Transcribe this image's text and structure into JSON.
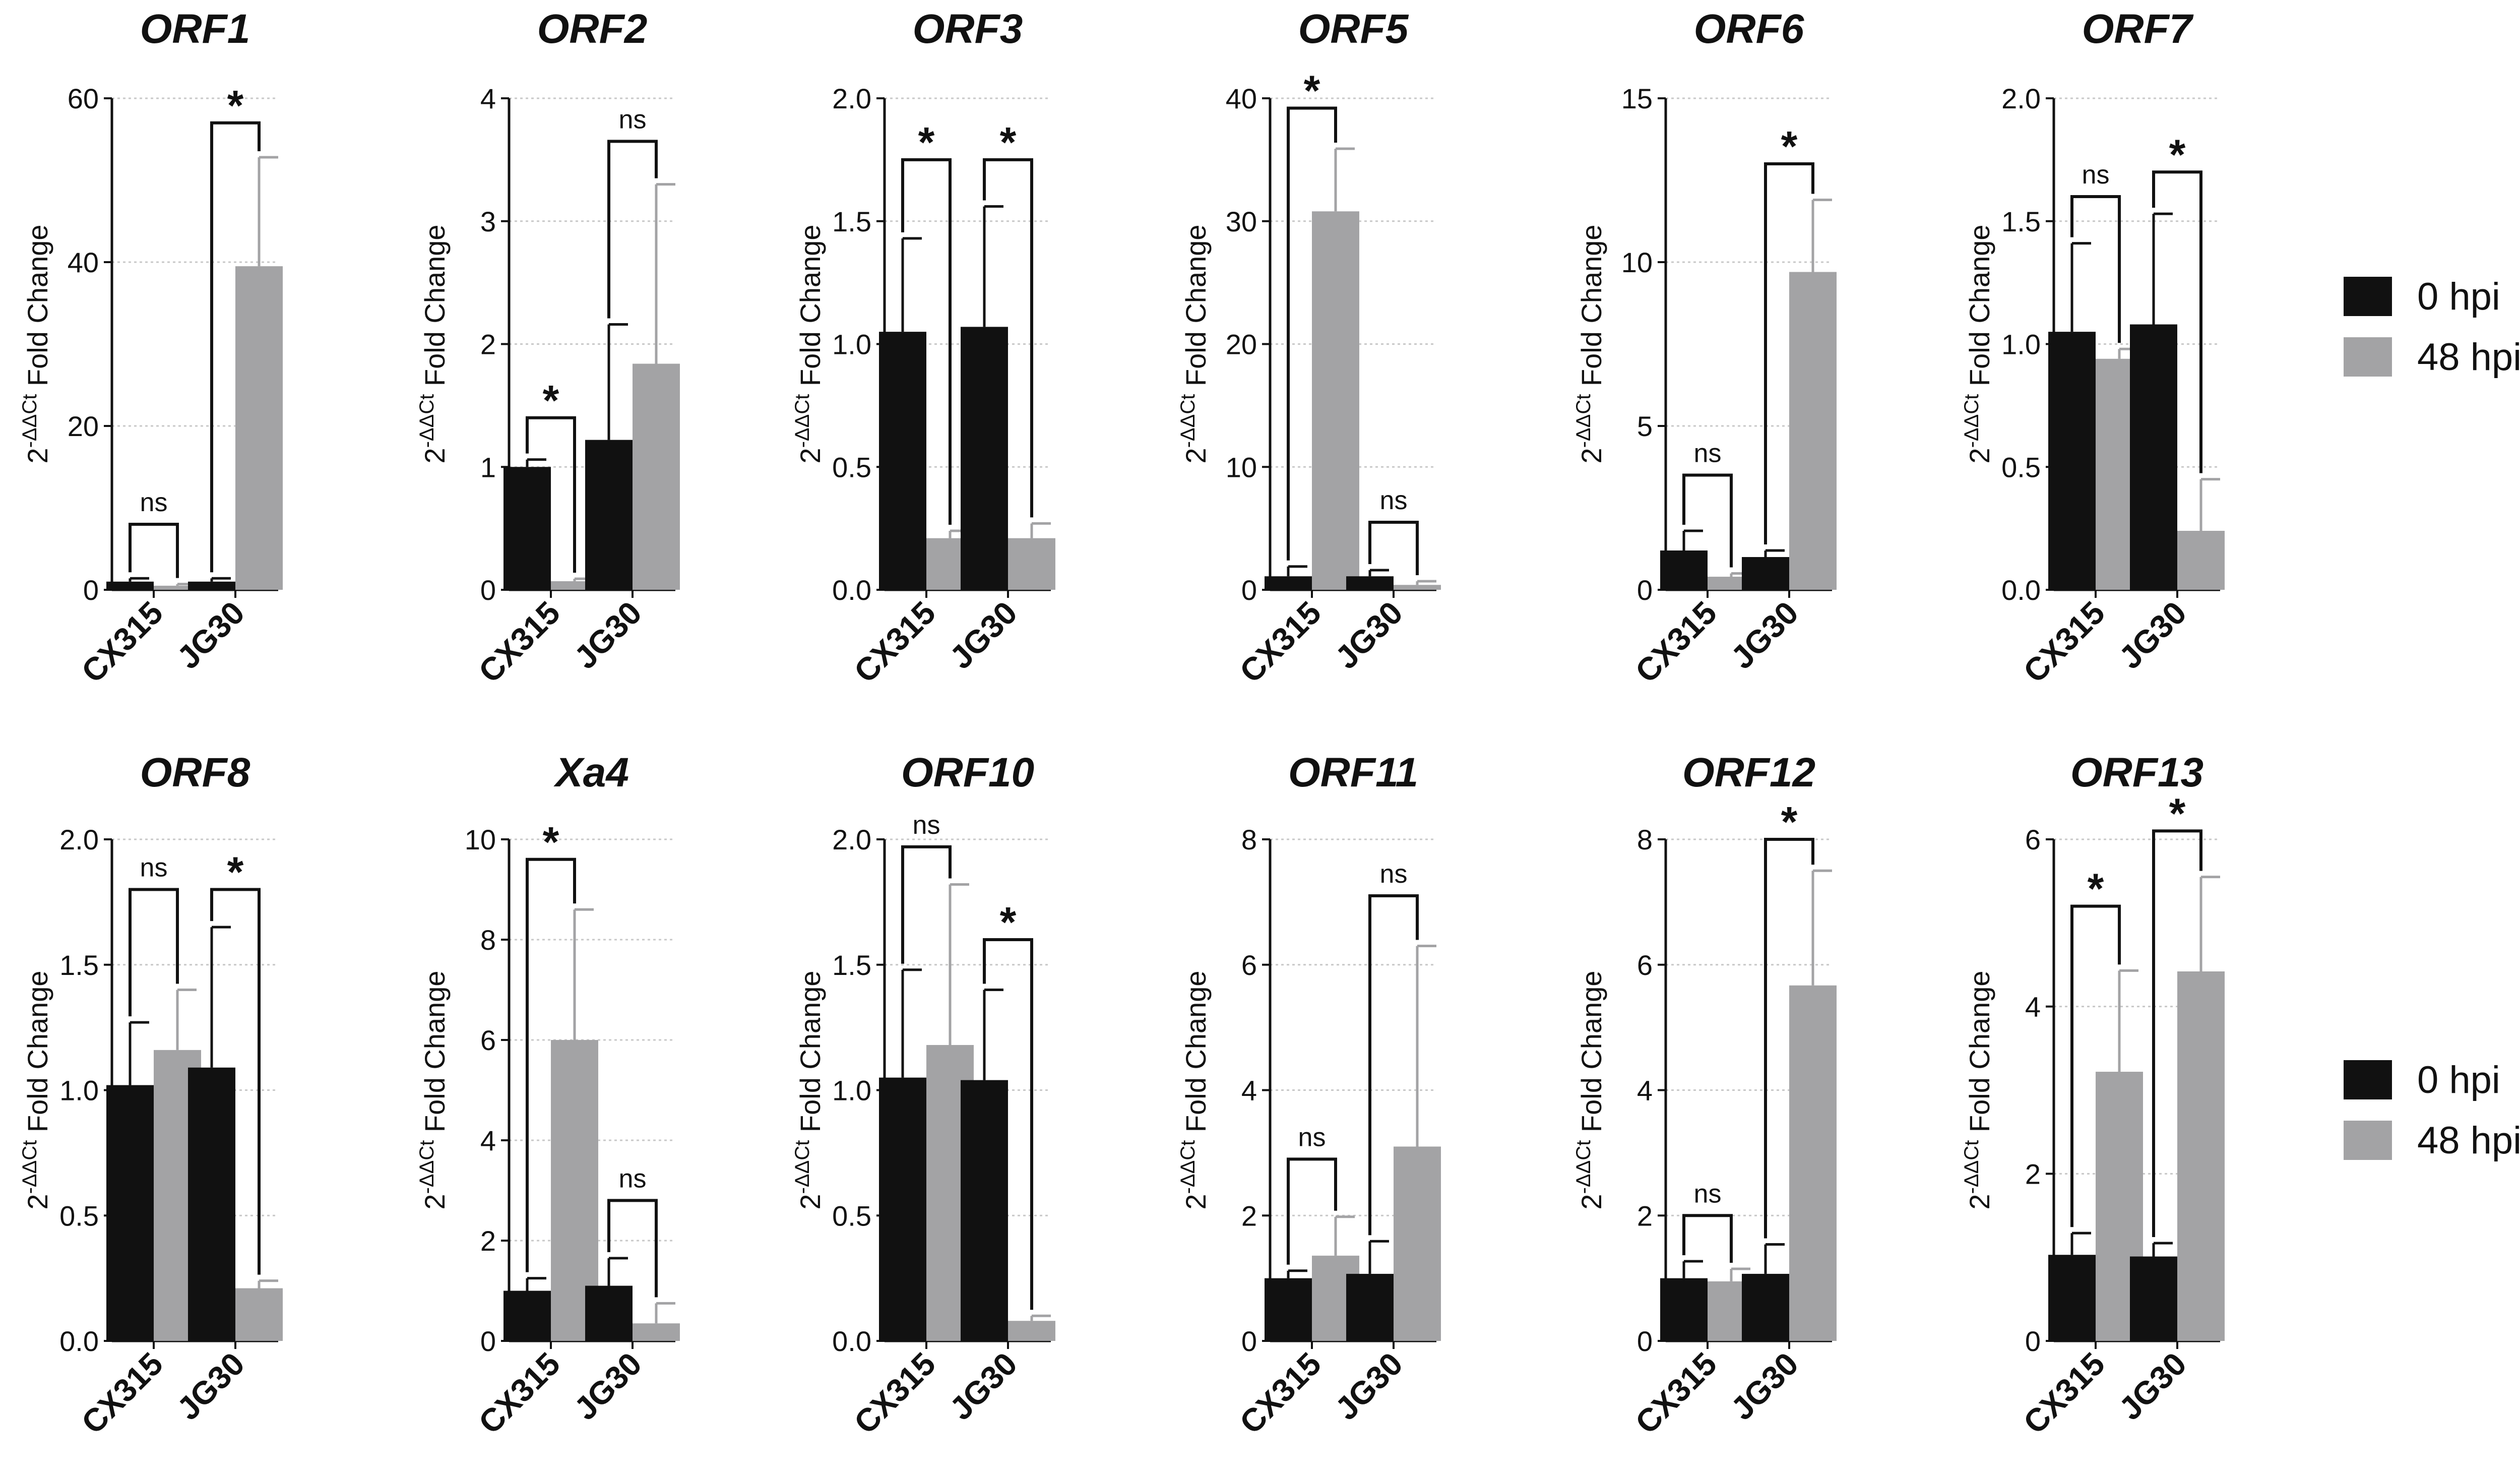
{
  "legend": {
    "items": [
      {
        "label": "0 hpi",
        "color": "#111111"
      },
      {
        "label": "48 hpi",
        "color": "#a3a3a5"
      }
    ]
  },
  "ylabel_base": "2",
  "ylabel_sup": "-ΔΔCt",
  "ylabel_rest": " Fold Change",
  "colors": {
    "hpi0": "#111111",
    "hpi48": "#a3a3a5",
    "grid": "#c8c8c8"
  },
  "chart_data": [
    {
      "type": "bar",
      "title": "ORF1",
      "categories": [
        "CX315",
        "JG30"
      ],
      "ylim": [
        0,
        60
      ],
      "ticks": [
        "0",
        "20",
        "40",
        "60"
      ],
      "series": [
        {
          "name": "0 hpi",
          "values": [
            1.0,
            1.0
          ],
          "errors": [
            0.4,
            0.4
          ]
        },
        {
          "name": "48 hpi",
          "values": [
            0.5,
            39.5
          ],
          "errors": [
            0.2,
            13.3
          ]
        }
      ],
      "significance": [
        "ns",
        "*"
      ],
      "bracket_y": [
        8,
        57
      ]
    },
    {
      "type": "bar",
      "title": "ORF2",
      "categories": [
        "CX315",
        "JG30"
      ],
      "ylim": [
        0,
        4
      ],
      "ticks": [
        "0",
        "1",
        "2",
        "3",
        "4"
      ],
      "series": [
        {
          "name": "0 hpi",
          "values": [
            1.0,
            1.22
          ],
          "errors": [
            0.06,
            0.94
          ]
        },
        {
          "name": "48 hpi",
          "values": [
            0.07,
            1.84
          ],
          "errors": [
            0.02,
            1.46
          ]
        }
      ],
      "significance": [
        "*",
        "ns"
      ],
      "bracket_y": [
        1.4,
        3.65
      ]
    },
    {
      "type": "bar",
      "title": "ORF3",
      "categories": [
        "CX315",
        "JG30"
      ],
      "ylim": [
        0,
        2.0
      ],
      "ticks": [
        "0.0",
        "0.5",
        "1.0",
        "1.5",
        "2.0"
      ],
      "series": [
        {
          "name": "0 hpi",
          "values": [
            1.05,
            1.07
          ],
          "errors": [
            0.38,
            0.49
          ]
        },
        {
          "name": "48 hpi",
          "values": [
            0.21,
            0.21
          ],
          "errors": [
            0.03,
            0.06
          ]
        }
      ],
      "significance": [
        "*",
        "*"
      ],
      "bracket_y": [
        1.75,
        1.75
      ]
    },
    {
      "type": "bar",
      "title": "ORF5",
      "categories": [
        "CX315",
        "JG30"
      ],
      "ylim": [
        0,
        40
      ],
      "ticks": [
        "0",
        "10",
        "20",
        "30",
        "40"
      ],
      "series": [
        {
          "name": "0 hpi",
          "values": [
            1.1,
            1.1
          ],
          "errors": [
            0.8,
            0.5
          ]
        },
        {
          "name": "48 hpi",
          "values": [
            30.8,
            0.4
          ],
          "errors": [
            5.1,
            0.3
          ]
        }
      ],
      "significance": [
        "*",
        "ns"
      ],
      "bracket_y": [
        39.2,
        5.5
      ]
    },
    {
      "type": "bar",
      "title": "ORF6",
      "categories": [
        "CX315",
        "JG30"
      ],
      "ylim": [
        0,
        15
      ],
      "ticks": [
        "0",
        "5",
        "10",
        "15"
      ],
      "series": [
        {
          "name": "0 hpi",
          "values": [
            1.2,
            1.0
          ],
          "errors": [
            0.6,
            0.2
          ]
        },
        {
          "name": "48 hpi",
          "values": [
            0.4,
            9.7
          ],
          "errors": [
            0.1,
            2.2
          ]
        }
      ],
      "significance": [
        "ns",
        "*"
      ],
      "bracket_y": [
        3.5,
        13.0
      ]
    },
    {
      "type": "bar",
      "title": "ORF7",
      "categories": [
        "CX315",
        "JG30"
      ],
      "ylim": [
        0,
        2.0
      ],
      "ticks": [
        "0.0",
        "0.5",
        "1.0",
        "1.5",
        "2.0"
      ],
      "series": [
        {
          "name": "0 hpi",
          "values": [
            1.05,
            1.08
          ],
          "errors": [
            0.36,
            0.45
          ]
        },
        {
          "name": "48 hpi",
          "values": [
            0.94,
            0.24
          ],
          "errors": [
            0.04,
            0.21
          ]
        }
      ],
      "significance": [
        "ns",
        "*"
      ],
      "bracket_y": [
        1.6,
        1.7
      ]
    },
    {
      "type": "bar",
      "title": "ORF8",
      "categories": [
        "CX315",
        "JG30"
      ],
      "ylim": [
        0,
        2.0
      ],
      "ticks": [
        "0.0",
        "0.5",
        "1.0",
        "1.5",
        "2.0"
      ],
      "series": [
        {
          "name": "0 hpi",
          "values": [
            1.02,
            1.09
          ],
          "errors": [
            0.25,
            0.56
          ]
        },
        {
          "name": "48 hpi",
          "values": [
            1.16,
            0.21
          ],
          "errors": [
            0.24,
            0.03
          ]
        }
      ],
      "significance": [
        "ns",
        "*"
      ],
      "bracket_y": [
        1.8,
        1.8
      ]
    },
    {
      "type": "bar",
      "title": "Xa4",
      "categories": [
        "CX315",
        "JG30"
      ],
      "ylim": [
        0,
        10
      ],
      "ticks": [
        "0",
        "2",
        "4",
        "6",
        "8",
        "10"
      ],
      "series": [
        {
          "name": "0 hpi",
          "values": [
            1.0,
            1.1
          ],
          "errors": [
            0.25,
            0.55
          ]
        },
        {
          "name": "48 hpi",
          "values": [
            6.0,
            0.35
          ],
          "errors": [
            2.6,
            0.4
          ]
        }
      ],
      "significance": [
        "*",
        "ns"
      ],
      "bracket_y": [
        9.6,
        2.8
      ]
    },
    {
      "type": "bar",
      "title": "ORF10",
      "categories": [
        "CX315",
        "JG30"
      ],
      "ylim": [
        0,
        2.0
      ],
      "ticks": [
        "0.0",
        "0.5",
        "1.0",
        "1.5",
        "2.0"
      ],
      "series": [
        {
          "name": "0 hpi",
          "values": [
            1.05,
            1.04
          ],
          "errors": [
            0.43,
            0.36
          ]
        },
        {
          "name": "48 hpi",
          "values": [
            1.18,
            0.08
          ],
          "errors": [
            0.64,
            0.02
          ]
        }
      ],
      "significance": [
        "ns",
        "*"
      ],
      "bracket_y": [
        1.97,
        1.6
      ]
    },
    {
      "type": "bar",
      "title": "ORF11",
      "categories": [
        "CX315",
        "JG30"
      ],
      "ylim": [
        0,
        8
      ],
      "ticks": [
        "0",
        "2",
        "4",
        "6",
        "8"
      ],
      "series": [
        {
          "name": "0 hpi",
          "values": [
            1.0,
            1.07
          ],
          "errors": [
            0.12,
            0.52
          ]
        },
        {
          "name": "48 hpi",
          "values": [
            1.36,
            3.1
          ],
          "errors": [
            0.62,
            3.2
          ]
        }
      ],
      "significance": [
        "ns",
        "ns"
      ],
      "bracket_y": [
        2.9,
        7.1
      ]
    },
    {
      "type": "bar",
      "title": "ORF12",
      "categories": [
        "CX315",
        "JG30"
      ],
      "ylim": [
        0,
        8
      ],
      "ticks": [
        "0",
        "2",
        "4",
        "6",
        "8"
      ],
      "series": [
        {
          "name": "0 hpi",
          "values": [
            1.0,
            1.07
          ],
          "errors": [
            0.27,
            0.47
          ]
        },
        {
          "name": "48 hpi",
          "values": [
            0.95,
            5.67
          ],
          "errors": [
            0.2,
            1.83
          ]
        }
      ],
      "significance": [
        "ns",
        "*"
      ],
      "bracket_y": [
        2.0,
        8.0
      ]
    },
    {
      "type": "bar",
      "title": "ORF13",
      "categories": [
        "CX315",
        "JG30"
      ],
      "ylim": [
        0,
        6
      ],
      "ticks": [
        "0",
        "2",
        "4",
        "6"
      ],
      "series": [
        {
          "name": "0 hpi",
          "values": [
            1.03,
            1.01
          ],
          "errors": [
            0.26,
            0.16
          ]
        },
        {
          "name": "48 hpi",
          "values": [
            3.22,
            4.42
          ],
          "errors": [
            1.21,
            1.13
          ]
        }
      ],
      "significance": [
        "*",
        "*"
      ],
      "bracket_y": [
        5.2,
        6.1
      ]
    }
  ]
}
